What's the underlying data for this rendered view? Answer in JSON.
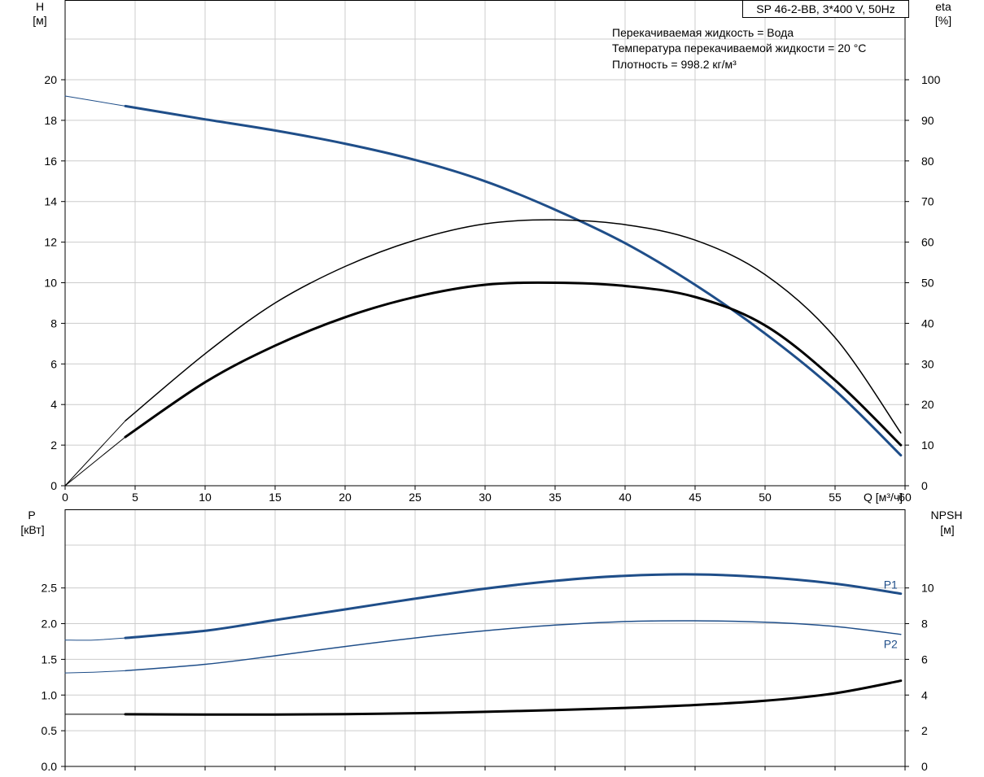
{
  "header": {
    "pump_model": "SP 46-2-BB, 3*400 V, 50Hz",
    "conditions": [
      "Перекачиваемая жидкость = Вода",
      "Температура перекачиваемой жидкости = 20 °C",
      "Плотность = 998.2 кг/м³"
    ]
  },
  "axes": {
    "h_title": "H",
    "h_unit": "[м]",
    "eta_title": "eta",
    "eta_unit": "[%]",
    "q_label": "Q [м³/ч]",
    "p_title": "P",
    "p_unit": "[кВт]",
    "npsh_title": "NPSH",
    "npsh_unit": "[м]"
  },
  "colors": {
    "blue": "#1f4e89",
    "black": "#000000",
    "grid": "#cccccc"
  },
  "chart_data": [
    {
      "type": "line",
      "panel": "top",
      "xlabel": "Q [м³/ч]",
      "ylabel": "H [м]",
      "y2label": "eta [%]",
      "xlim": [
        0,
        60
      ],
      "ylim": [
        0,
        20
      ],
      "y2lim": [
        0,
        100
      ],
      "x_ticks": [
        0,
        5,
        10,
        15,
        20,
        25,
        30,
        35,
        40,
        45,
        50,
        55,
        60
      ],
      "y_ticks": [
        0,
        2,
        4,
        6,
        8,
        10,
        12,
        14,
        16,
        18,
        20
      ],
      "y2_ticks": [
        0,
        10,
        20,
        30,
        40,
        50,
        60,
        70,
        80,
        90,
        100
      ],
      "grid": true,
      "series": [
        {
          "color": "blue",
          "axis": "left",
          "width": 3,
          "x": [
            4.3,
            10,
            15,
            20,
            25,
            30,
            35,
            40,
            45,
            50,
            55,
            59.7
          ],
          "values": [
            18.7,
            18.05,
            17.5,
            16.85,
            16.05,
            15.0,
            13.6,
            11.95,
            9.9,
            7.5,
            4.7,
            1.5
          ]
        },
        {
          "color": "blue",
          "axis": "left",
          "width": 1,
          "segment": "extrapolated",
          "x": [
            0,
            4.3
          ],
          "values": [
            19.2,
            18.7
          ]
        },
        {
          "color": "black",
          "axis": "right",
          "width": 3,
          "x": [
            4.3,
            10,
            15,
            20,
            25,
            30,
            35,
            40,
            45,
            50,
            55,
            59.7
          ],
          "values": [
            12,
            25.5,
            34.5,
            41.5,
            46.5,
            49.5,
            50.0,
            49.2,
            46.5,
            39.5,
            26.0,
            10.0
          ]
        },
        {
          "color": "black",
          "axis": "right",
          "width": 1,
          "segment": "extrapolated",
          "x": [
            0,
            4.3
          ],
          "values": [
            0,
            12
          ]
        },
        {
          "color": "black",
          "axis": "right",
          "width": 1.5,
          "x": [
            4.3,
            10,
            15,
            20,
            25,
            30,
            35,
            40,
            45,
            50,
            55,
            59.7
          ],
          "values": [
            16,
            32.5,
            45,
            54,
            60.5,
            64.5,
            65.5,
            64.3,
            60.5,
            52.0,
            36.5,
            13.0
          ]
        },
        {
          "color": "black",
          "axis": "right",
          "width": 1,
          "segment": "extrapolated",
          "x": [
            0,
            4.3
          ],
          "values": [
            0,
            16
          ]
        }
      ]
    },
    {
      "type": "line",
      "panel": "bottom",
      "ylabel": "P [кВт]",
      "y2label": "NPSH [м]",
      "xlim": [
        0,
        60
      ],
      "ylim": [
        0,
        3.1
      ],
      "y2lim": [
        0,
        12.4
      ],
      "y_ticks": [
        "0.0",
        "0.5",
        "1.0",
        "1.5",
        "2.0",
        "2.5"
      ],
      "y2_ticks": [
        0,
        2,
        4,
        6,
        8,
        10
      ],
      "grid": true,
      "series": [
        {
          "name": "P1",
          "color": "blue",
          "axis": "left",
          "width": 3,
          "x": [
            4.3,
            10,
            15,
            20,
            25,
            30,
            35,
            40,
            45,
            50,
            55,
            59.7
          ],
          "values": [
            1.8,
            1.9,
            2.05,
            2.2,
            2.35,
            2.49,
            2.6,
            2.67,
            2.69,
            2.65,
            2.56,
            2.42
          ]
        },
        {
          "color": "blue",
          "axis": "left",
          "width": 1,
          "segment": "extrapolated",
          "x": [
            0,
            2,
            4.3
          ],
          "values": [
            1.77,
            1.77,
            1.8
          ]
        },
        {
          "name": "P2",
          "color": "blue",
          "axis": "left",
          "width": 1.5,
          "x": [
            4.3,
            10,
            15,
            20,
            25,
            30,
            35,
            40,
            45,
            50,
            55,
            59.7
          ],
          "values": [
            1.34,
            1.43,
            1.55,
            1.68,
            1.8,
            1.9,
            1.98,
            2.03,
            2.04,
            2.02,
            1.96,
            1.85
          ]
        },
        {
          "color": "blue",
          "axis": "left",
          "width": 1,
          "segment": "extrapolated",
          "x": [
            0,
            2,
            4.3
          ],
          "values": [
            1.31,
            1.32,
            1.34
          ]
        },
        {
          "color": "black",
          "axis": "right",
          "width": 3,
          "x": [
            4.3,
            10,
            15,
            20,
            25,
            30,
            35,
            40,
            45,
            50,
            55,
            59.7
          ],
          "values": [
            2.92,
            2.91,
            2.91,
            2.93,
            2.98,
            3.06,
            3.16,
            3.28,
            3.44,
            3.68,
            4.1,
            4.8
          ]
        },
        {
          "color": "black",
          "axis": "right",
          "width": 1,
          "segment": "extrapolated",
          "x": [
            0,
            4.3
          ],
          "values": [
            2.92,
            2.92
          ]
        }
      ]
    }
  ]
}
